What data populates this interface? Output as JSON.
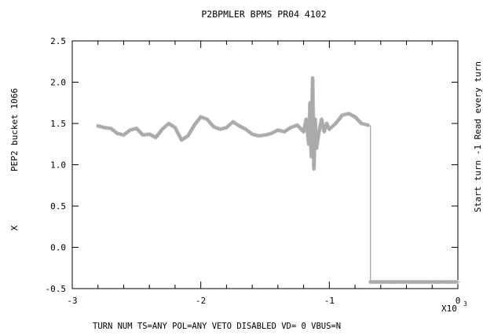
{
  "chart_data": {
    "type": "line",
    "title": "P2BPMLER  BPMS PR04 4102",
    "ylabel": "X",
    "ylabel_secondary": "PEP2 bucket 1066",
    "right_label": "Start turn -1 Read every turn",
    "x_multiplier_label": "X10",
    "x_multiplier_exp": "3",
    "footer": "TURN NUM  TS=ANY    POL=ANY     VETO DISABLED  VD= 0 VBUS=N",
    "xlim": [
      -3,
      0.0
    ],
    "ylim": [
      -0.5,
      2.5
    ],
    "x_ticks": [
      -3,
      -2,
      -1,
      0
    ],
    "x_tick_labels": [
      "-3",
      "-2",
      "-1",
      "0"
    ],
    "y_ticks": [
      -0.5,
      0.0,
      0.5,
      1.0,
      1.5,
      2.0,
      2.5
    ],
    "y_tick_labels": [
      "-0.5",
      "0.0",
      "0.5",
      "1.0",
      "1.5",
      "2.0",
      "2.5"
    ],
    "series_color": "#aaaaaa",
    "series": [
      {
        "values_x": [
          -2.8,
          -2.75,
          -2.7,
          -2.65,
          -2.6,
          -2.55,
          -2.5,
          -2.45,
          -2.4,
          -2.35,
          -2.3,
          -2.25,
          -2.2,
          -2.15,
          -2.1,
          -2.05,
          -2.0,
          -1.95,
          -1.9,
          -1.85,
          -1.8,
          -1.75,
          -1.7,
          -1.65,
          -1.6,
          -1.55,
          -1.5,
          -1.45,
          -1.4,
          -1.35,
          -1.3,
          -1.25,
          -1.2,
          -1.18,
          -1.16,
          -1.15,
          -1.14,
          -1.13,
          -1.12,
          -1.11,
          -1.1,
          -1.08,
          -1.06,
          -1.04,
          -1.02,
          -1.0,
          -0.95,
          -0.9,
          -0.85,
          -0.8,
          -0.75,
          -0.7,
          -0.68,
          -0.68,
          -0.5,
          -0.3,
          -0.1,
          0.0
        ],
        "values_y": [
          1.47,
          1.45,
          1.44,
          1.38,
          1.36,
          1.42,
          1.44,
          1.36,
          1.37,
          1.33,
          1.43,
          1.5,
          1.45,
          1.3,
          1.35,
          1.48,
          1.58,
          1.55,
          1.46,
          1.43,
          1.45,
          1.52,
          1.47,
          1.43,
          1.37,
          1.35,
          1.36,
          1.38,
          1.42,
          1.4,
          1.45,
          1.48,
          1.4,
          1.55,
          1.25,
          1.75,
          1.1,
          2.05,
          0.95,
          1.55,
          1.2,
          1.4,
          1.55,
          1.4,
          1.5,
          1.43,
          1.5,
          1.6,
          1.62,
          1.58,
          1.5,
          1.48,
          1.47,
          -0.42,
          -0.42,
          -0.42,
          -0.42,
          -0.42
        ]
      }
    ]
  }
}
